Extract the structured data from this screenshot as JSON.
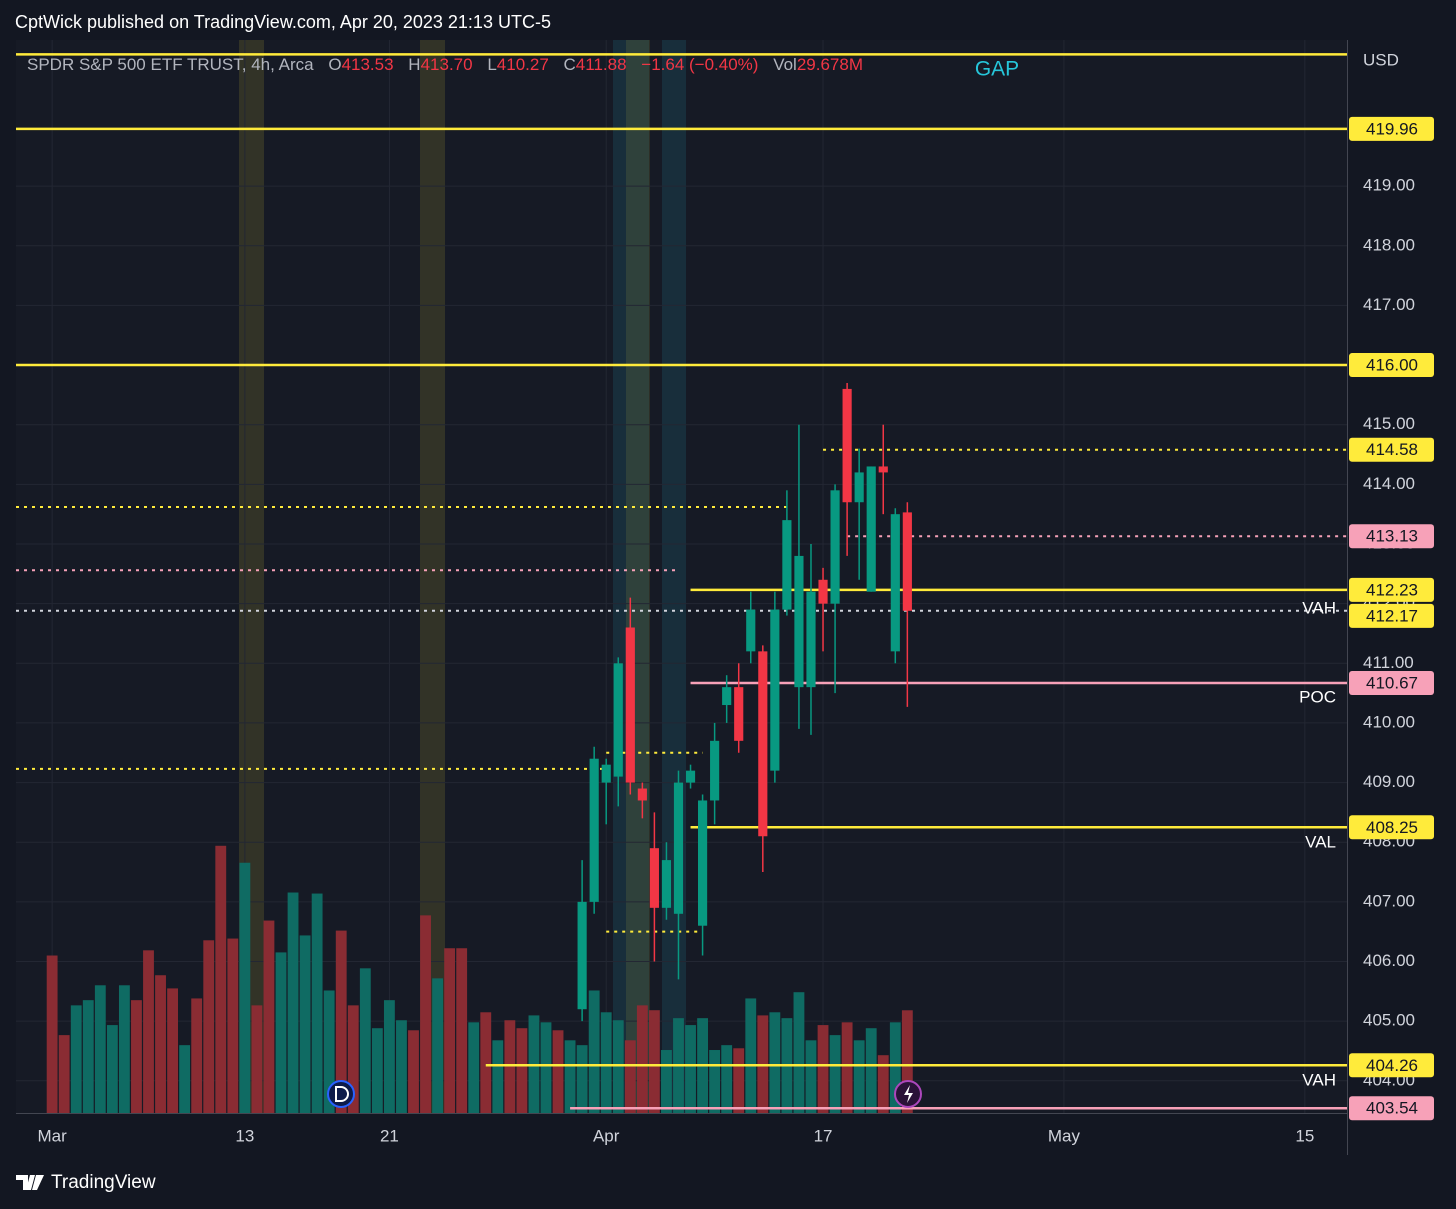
{
  "header": {
    "publisher": "CptWick published on TradingView.com, Apr 20, 2023 21:13 UTC-5"
  },
  "footer": {
    "brand": "TradingView"
  },
  "chart_data": {
    "type": "candlestick",
    "legend": {
      "name": "SPDR S&P 500 ETF TRUST, 4h, Arca",
      "o": "O",
      "open": "413.53",
      "h": "H",
      "high": "413.70",
      "l": "L",
      "low": "410.27",
      "c": "C",
      "close": "411.88",
      "change": "−1.64 (−0.40%)",
      "vol": "Vol",
      "volume": "29.678M"
    },
    "currency": "USD",
    "annotations": [
      "GAP",
      "VAH",
      "POC",
      "VAL",
      "VAH"
    ],
    "up_color": "#089981",
    "down_color": "#f23645",
    "x": [
      44,
      45,
      46,
      47,
      48,
      49,
      50,
      51,
      52,
      53,
      54,
      55,
      56,
      57,
      58,
      59,
      60,
      61,
      62,
      63,
      64,
      65,
      66,
      67,
      68,
      69,
      70,
      71
    ],
    "open": [
      405.2,
      407.0,
      409.0,
      409.1,
      411.6,
      408.9,
      407.9,
      406.9,
      406.8,
      409.0,
      406.6,
      408.7,
      410.3,
      410.6,
      411.2,
      411.2,
      409.2,
      411.9,
      410.6,
      410.6,
      412.4,
      412.0,
      415.6,
      413.7,
      412.2,
      414.3,
      411.2,
      413.53
    ],
    "high": [
      407.7,
      409.6,
      409.4,
      411.1,
      412.1,
      409.0,
      408.5,
      408.0,
      409.2,
      409.3,
      408.8,
      410.0,
      410.8,
      411.0,
      412.2,
      411.3,
      412.2,
      413.9,
      415.0,
      413.0,
      412.6,
      414.0,
      415.7,
      414.6,
      414.3,
      415.0,
      413.6,
      413.7
    ],
    "low": [
      405.0,
      406.8,
      408.3,
      408.6,
      408.8,
      408.4,
      406.0,
      406.7,
      405.7,
      408.9,
      406.1,
      408.3,
      410.0,
      409.5,
      411.0,
      407.5,
      409.0,
      411.8,
      409.9,
      409.8,
      411.2,
      410.5,
      412.8,
      412.4,
      412.2,
      413.5,
      411.0,
      410.27
    ],
    "close": [
      407.0,
      409.4,
      409.3,
      411.0,
      409.0,
      408.7,
      406.9,
      407.7,
      409.0,
      409.2,
      408.7,
      409.7,
      410.6,
      409.7,
      411.9,
      408.1,
      411.9,
      413.4,
      412.8,
      412.2,
      412.0,
      413.9,
      413.7,
      414.2,
      414.3,
      414.2,
      413.5,
      411.88
    ],
    "volume": {
      "x": [
        0,
        1,
        2,
        3,
        4,
        5,
        6,
        7,
        8,
        9,
        10,
        11,
        12,
        13,
        14,
        15,
        16,
        17,
        18,
        19,
        20,
        21,
        22,
        23,
        24,
        25,
        26,
        27,
        28,
        29,
        30,
        31,
        32,
        33,
        34,
        35,
        36,
        37,
        38,
        39,
        40,
        41,
        42,
        43,
        44,
        45,
        46,
        47,
        48,
        49,
        50,
        51,
        52,
        53,
        54,
        55,
        56,
        57,
        58,
        59,
        60,
        61,
        62,
        63,
        64,
        65,
        66,
        67,
        68,
        69,
        70,
        71
      ],
      "values": [
        45.5,
        22.5,
        31.1,
        32.6,
        36.9,
        25.4,
        36.9,
        32.6,
        47.0,
        39.8,
        36.0,
        19.6,
        33.1,
        49.9,
        77.2,
        50.4,
        72.3,
        31.1,
        55.6,
        46.4,
        63.7,
        51.3,
        63.4,
        35.4,
        52.7,
        31.1,
        41.8,
        24.5,
        32.6,
        26.8,
        23.9,
        57.1,
        38.9,
        47.6,
        47.6,
        26.2,
        29.1,
        21.0,
        26.8,
        24.5,
        28.2,
        26.2,
        23.9,
        21.0,
        19.6,
        35.4,
        29.1,
        26.8,
        21.0,
        31.1,
        29.7,
        18.2,
        27.4,
        25.4,
        27.4,
        18.2,
        19.6,
        18.7,
        33.1,
        28.2,
        29.1,
        27.4,
        34.9,
        21.0,
        25.4,
        22.5,
        26.2,
        21.0,
        24.5,
        16.7,
        26.2,
        29.678
      ],
      "colors": [
        "#8a2c33",
        "#8a2c33",
        "#0f6b63",
        "#0f6b63",
        "#0f6b63",
        "#0f6b63",
        "#0f6b63",
        "#8a2c33",
        "#8a2c33",
        "#8a2c33",
        "#8a2c33",
        "#0f6b63",
        "#8a2c33",
        "#8a2c33",
        "#8a2c33",
        "#8a2c33",
        "#0f6b63",
        "#8a2c33",
        "#8a2c33",
        "#0f6b63",
        "#0f6b63",
        "#0f6b63",
        "#0f6b63",
        "#0f6b63",
        "#8a2c33",
        "#8a2c33",
        "#0f6b63",
        "#0f6b63",
        "#0f6b63",
        "#0f6b63",
        "#8a2c33",
        "#8a2c33",
        "#0f6b63",
        "#8a2c33",
        "#8a2c33",
        "#0f6b63",
        "#8a2c33",
        "#0f6b63",
        "#8a2c33",
        "#8a2c33",
        "#0f6b63",
        "#0f6b63",
        "#8a2c33",
        "#0f6b63",
        "#0f6b63",
        "#0f6b63",
        "#0f6b63",
        "#0f6b63",
        "#8a2c33",
        "#8a2c33",
        "#8a2c33",
        "#0f6b63",
        "#0f6b63",
        "#0f6b63",
        "#0f6b63",
        "#0f6b63",
        "#0f6b63",
        "#8a2c33",
        "#0f6b63",
        "#8a2c33",
        "#0f6b63",
        "#0f6b63",
        "#0f6b63",
        "#0f6b63",
        "#8a2c33",
        "#0f6b63",
        "#8a2c33",
        "#0f6b63",
        "#0f6b63",
        "#8a2c33",
        "#0f6b63",
        "#8a2c33"
      ],
      "scale": [
        0,
        310
      ]
    },
    "levels": [
      {
        "value": 421.21,
        "color": "#ffeb3b",
        "style": "solid"
      },
      {
        "value": 419.96,
        "label": "419.96",
        "color": "#ffeb3b",
        "style": "solid"
      },
      {
        "value": 416.0,
        "label": "416.00",
        "color": "#ffeb3b",
        "style": "solid"
      },
      {
        "value": 414.58,
        "label": "414.58",
        "color": "#ffeb3b",
        "style": "dotted",
        "from": 64
      },
      {
        "value": 413.62,
        "color": "#ffeb3b",
        "style": "dotted",
        "to": 61
      },
      {
        "value": 413.13,
        "label": "413.13",
        "color": "#f7a1b8",
        "style": "dotted",
        "from": 66
      },
      {
        "value": 412.56,
        "color": "#f7a1b8",
        "style": "dotted",
        "to": 52
      },
      {
        "value": 412.23,
        "label": "412.23",
        "color": "#ffeb3b",
        "style": "solid",
        "from": 53
      },
      {
        "value": 412.17,
        "label": "412.17",
        "color": "#ffeb3b",
        "style": "none"
      },
      {
        "value": 411.88,
        "color": "#d1d4dc",
        "style": "dotted"
      },
      {
        "value": 410.67,
        "label": "410.67",
        "color": "#f7a1b8",
        "style": "solid",
        "from": 53
      },
      {
        "value": 409.5,
        "color": "#ffeb3b",
        "style": "dotted",
        "from": 46,
        "to": 54
      },
      {
        "value": 409.23,
        "color": "#ffeb3b",
        "style": "dotted",
        "to": 46
      },
      {
        "value": 408.25,
        "label": "408.25",
        "color": "#ffeb3b",
        "style": "solid",
        "from": 53
      },
      {
        "value": 406.5,
        "color": "#ffeb3b",
        "style": "dotted",
        "from": 46,
        "to": 54
      },
      {
        "value": 404.26,
        "label": "404.26",
        "color": "#ffeb3b",
        "style": "solid",
        "from": 36
      },
      {
        "value": 403.54,
        "label": "403.54",
        "color": "#f7a1b8",
        "style": "solid",
        "from": 43
      }
    ],
    "xlim": [
      -3,
      107.5
    ],
    "xticks": [
      {
        "value": 0,
        "label": "Mar"
      },
      {
        "value": 16,
        "label": "13"
      },
      {
        "value": 28,
        "label": "21"
      },
      {
        "value": 46,
        "label": "Apr"
      },
      {
        "value": 64,
        "label": "17"
      },
      {
        "value": 84,
        "label": "May"
      },
      {
        "value": 104,
        "label": "15"
      }
    ],
    "ylim": [
      403.46,
      421.45
    ],
    "yticks": [
      {
        "value": 404,
        "label": "404.00"
      },
      {
        "value": 405,
        "label": "405.00"
      },
      {
        "value": 406,
        "label": "406.00"
      },
      {
        "value": 407,
        "label": "407.00"
      },
      {
        "value": 408,
        "label": "408.00"
      },
      {
        "value": 409,
        "label": "409.00"
      },
      {
        "value": 410,
        "label": "410.00"
      },
      {
        "value": 411,
        "label": "411.00"
      },
      {
        "value": 412,
        "label": "412.00"
      },
      {
        "value": 413,
        "label": "413.00"
      },
      {
        "value": 414,
        "label": "414.00"
      },
      {
        "value": 415,
        "label": "415.00"
      },
      {
        "value": 416,
        "label": "416.00"
      },
      {
        "value": 417,
        "label": "417.00"
      },
      {
        "value": 418,
        "label": "418.00"
      },
      {
        "value": 419,
        "label": "419.00"
      }
    ],
    "grid": true
  }
}
